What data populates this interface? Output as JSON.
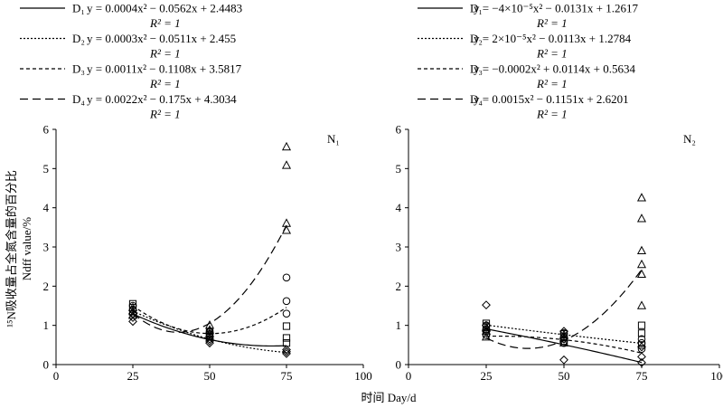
{
  "figure": {
    "y_axis_label_line1": "¹⁵N吸收量占全氮含量的百分比",
    "y_axis_label_line2": "Ndff value/%",
    "x_axis_label": "时间 Day/d"
  },
  "chart_data": [
    {
      "type": "scatter",
      "panel_label": "N₁",
      "xlim": [
        0,
        100
      ],
      "ylim": [
        0,
        6
      ],
      "xticks": [
        0,
        25,
        50,
        75,
        100
      ],
      "yticks": [
        0,
        1,
        2,
        3,
        4,
        5,
        6
      ],
      "grid": false,
      "legend_position": "top",
      "series": [
        {
          "name": "D₁",
          "marker": "diamond",
          "line_style": "solid",
          "equation": "y = 0.0004x² − 0.0562x + 2.4483",
          "r2": "R² = 1",
          "coef": [
            0.0004,
            -0.0562,
            2.4483
          ],
          "points": [
            [
              25,
              1.1
            ],
            [
              25,
              1.2
            ],
            [
              25,
              1.3
            ],
            [
              50,
              0.55
            ],
            [
              50,
              0.6
            ],
            [
              50,
              0.65
            ],
            [
              75,
              0.28
            ],
            [
              75,
              0.33
            ],
            [
              75,
              0.38
            ]
          ]
        },
        {
          "name": "D₂",
          "marker": "square",
          "line_style": "dotted",
          "equation": "y = 0.0003x² − 0.0511x + 2.455",
          "r2": "R² = 1",
          "coef": [
            0.0003,
            -0.0511,
            2.455
          ],
          "points": [
            [
              25,
              1.35
            ],
            [
              25,
              1.45
            ],
            [
              25,
              1.55
            ],
            [
              50,
              0.7
            ],
            [
              50,
              0.75
            ],
            [
              50,
              0.82
            ],
            [
              75,
              0.55
            ],
            [
              75,
              0.68
            ],
            [
              75,
              0.98
            ]
          ]
        },
        {
          "name": "D₃",
          "marker": "circle",
          "line_style": "short-dash",
          "equation": "y = 0.0011x² − 0.1108x + 3.5817",
          "r2": "R² = 1",
          "coef": [
            0.0011,
            -0.1108,
            3.5817
          ],
          "points": [
            [
              25,
              1.3
            ],
            [
              25,
              1.4
            ],
            [
              25,
              1.5
            ],
            [
              50,
              0.72
            ],
            [
              50,
              0.78
            ],
            [
              50,
              0.85
            ],
            [
              75,
              1.3
            ],
            [
              75,
              1.62
            ],
            [
              75,
              2.22
            ]
          ]
        },
        {
          "name": "D₄",
          "marker": "triangle",
          "line_style": "long-dash",
          "equation": "y = 0.0022x² − 0.175x + 4.3034",
          "r2": "R² = 1",
          "coef": [
            0.0022,
            -0.175,
            4.3034
          ],
          "points": [
            [
              25,
              1.25
            ],
            [
              25,
              1.35
            ],
            [
              25,
              1.45
            ],
            [
              50,
              0.78
            ],
            [
              50,
              0.88
            ],
            [
              50,
              1.0
            ],
            [
              75,
              3.42
            ],
            [
              75,
              3.6
            ],
            [
              75,
              5.08
            ],
            [
              75,
              5.55
            ]
          ]
        }
      ]
    },
    {
      "type": "scatter",
      "panel_label": "N₂",
      "xlim": [
        0,
        100
      ],
      "ylim": [
        0,
        6
      ],
      "xticks": [
        0,
        25,
        50,
        75,
        100
      ],
      "yticks": [
        0,
        1,
        2,
        3,
        4,
        5,
        6
      ],
      "grid": false,
      "legend_position": "top",
      "series": [
        {
          "name": "D₁",
          "marker": "diamond",
          "line_style": "solid",
          "equation": "y = −4×10⁻⁵x² − 0.0131x + 1.2617",
          "r2": "R² = 1",
          "coef": [
            -4e-05,
            -0.0131,
            1.2617
          ],
          "points": [
            [
              25,
              0.85
            ],
            [
              25,
              1.0
            ],
            [
              25,
              1.52
            ],
            [
              50,
              0.12
            ],
            [
              50,
              0.65
            ],
            [
              50,
              0.85
            ],
            [
              75,
              0.05
            ],
            [
              75,
              0.2
            ],
            [
              75,
              0.45
            ]
          ]
        },
        {
          "name": "D₂",
          "marker": "square",
          "line_style": "dotted",
          "equation": "y = 2×10⁻⁵x² − 0.0113x + 1.2784",
          "r2": "R² = 1",
          "coef": [
            2e-05,
            -0.0113,
            1.2784
          ],
          "points": [
            [
              25,
              0.8
            ],
            [
              25,
              0.95
            ],
            [
              25,
              1.05
            ],
            [
              50,
              0.6
            ],
            [
              50,
              0.72
            ],
            [
              50,
              0.78
            ],
            [
              75,
              0.5
            ],
            [
              75,
              0.8
            ],
            [
              75,
              1.0
            ]
          ]
        },
        {
          "name": "D₃",
          "marker": "circle",
          "line_style": "short-dash",
          "equation": "y = −0.0002x² + 0.0114x + 0.5634",
          "r2": "R² = 1",
          "coef": [
            -0.0002,
            0.0114,
            0.5634
          ],
          "points": [
            [
              25,
              0.75
            ],
            [
              25,
              0.9
            ],
            [
              25,
              1.0
            ],
            [
              50,
              0.55
            ],
            [
              50,
              0.7
            ],
            [
              50,
              0.8
            ],
            [
              75,
              0.4
            ],
            [
              75,
              0.55
            ],
            [
              75,
              0.65
            ]
          ]
        },
        {
          "name": "D₄",
          "marker": "triangle",
          "line_style": "long-dash",
          "equation": "y = 0.0015x² − 0.1151x + 2.6201",
          "r2": "R² = 1",
          "coef": [
            0.0015,
            -0.1151,
            2.6201
          ],
          "points": [
            [
              25,
              0.7
            ],
            [
              25,
              0.85
            ],
            [
              25,
              0.95
            ],
            [
              50,
              0.55
            ],
            [
              50,
              0.68
            ],
            [
              50,
              0.75
            ],
            [
              75,
              1.5
            ],
            [
              75,
              2.3
            ],
            [
              75,
              2.55
            ],
            [
              75,
              2.9
            ],
            [
              75,
              3.72
            ],
            [
              75,
              4.25
            ]
          ]
        }
      ]
    }
  ]
}
